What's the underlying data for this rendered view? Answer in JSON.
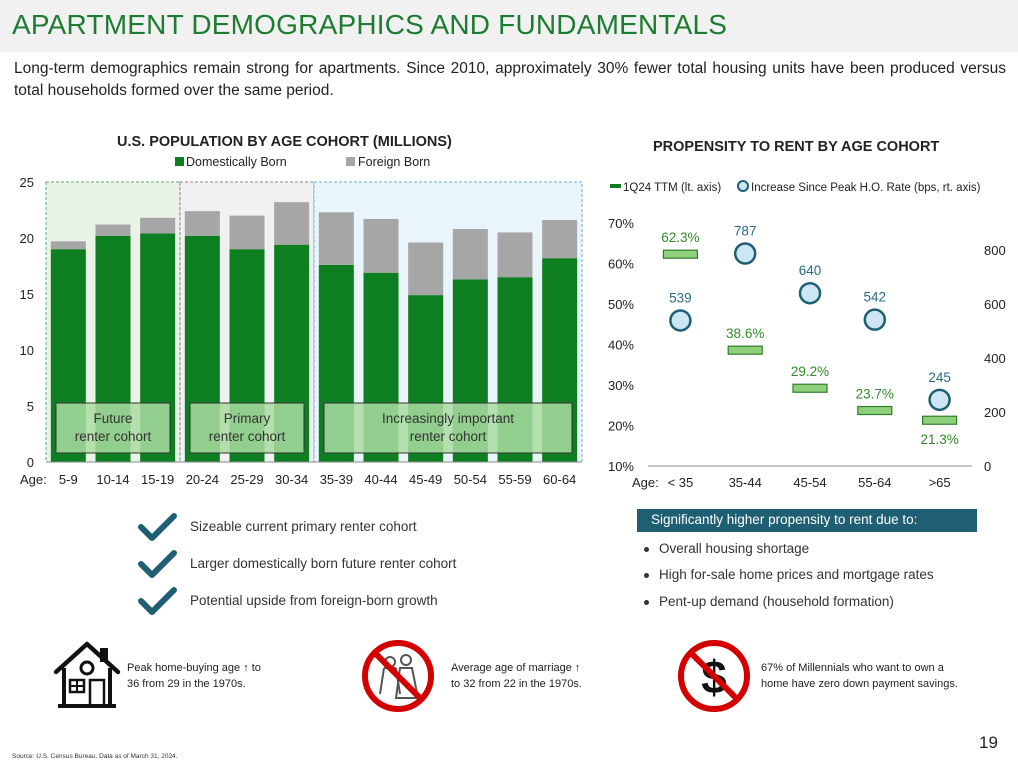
{
  "header": {
    "title": "APARTMENT DEMOGRAPHICS AND FUNDAMENTALS",
    "subtitle": "Long-term demographics remain strong for apartments. Since 2010, approximately 30% fewer total housing units have been produced versus total households formed over the same period."
  },
  "colors": {
    "green": "#0e7f21",
    "gray": "#a6a6a6",
    "light_green": "#8fd07c",
    "teal": "#1f5f73",
    "marker_blue": "#cde6f3",
    "marker_edge": "#1f5f73",
    "title_green": "#1e7b32"
  },
  "chart_data": [
    {
      "type": "bar",
      "title": "U.S. POPULATION BY AGE COHORT (MILLIONS)",
      "x_prefix": "Age:",
      "categories": [
        "5-9",
        "10-14",
        "15-19",
        "20-24",
        "25-29",
        "30-34",
        "35-39",
        "40-44",
        "45-49",
        "50-54",
        "55-59",
        "60-64"
      ],
      "series": [
        {
          "name": "Domestically Born",
          "values": [
            19.0,
            20.2,
            20.4,
            20.2,
            19.0,
            19.4,
            17.6,
            16.9,
            14.9,
            16.3,
            16.5,
            18.2
          ]
        },
        {
          "name": "Foreign Born",
          "values": [
            0.7,
            1.0,
            1.4,
            2.2,
            3.0,
            3.8,
            4.7,
            4.8,
            4.7,
            4.5,
            4.0,
            3.4
          ]
        }
      ],
      "stacked": true,
      "ylim": [
        0,
        25
      ],
      "yticks": [
        0,
        5,
        10,
        15,
        20,
        25
      ],
      "legend": "top",
      "groups": [
        {
          "label": "Future\nrenter cohort",
          "from": 0,
          "to": 2
        },
        {
          "label": "Primary\nrenter cohort",
          "from": 3,
          "to": 5
        },
        {
          "label": "Increasingly important\nrenter cohort",
          "from": 6,
          "to": 11
        }
      ]
    },
    {
      "type": "scatter",
      "title": "PROPENSITY TO RENT BY AGE COHORT",
      "x_prefix": "Age:",
      "categories": [
        "< 35",
        "35-44",
        "45-54",
        "55-64",
        ">65"
      ],
      "series": [
        {
          "name": "1Q24 TTM (lt. axis)",
          "axis": "left",
          "values": [
            62.3,
            38.6,
            29.2,
            23.7,
            21.3
          ],
          "labels": [
            "62.3%",
            "38.6%",
            "29.2%",
            "23.7%",
            "21.3%"
          ]
        },
        {
          "name": "Increase Since Peak H.O. Rate (bps, rt. axis)",
          "axis": "right",
          "values": [
            539,
            787,
            640,
            542,
            245
          ],
          "labels": [
            "539",
            "787",
            "640",
            "542",
            "245"
          ]
        }
      ],
      "ylim_left": [
        10,
        70
      ],
      "yticks_left": [
        "10%",
        "20%",
        "30%",
        "40%",
        "50%",
        "60%",
        "70%"
      ],
      "ylim_right": [
        0,
        900
      ],
      "yticks_right": [
        "0",
        "200",
        "400",
        "600",
        "800"
      ],
      "legend": "top"
    }
  ],
  "checklist": [
    "Sizeable current primary renter cohort",
    "Larger domestically born future renter cohort",
    "Potential upside from foreign-born growth"
  ],
  "reasons": {
    "heading": "Significantly higher propensity to rent due to:",
    "items": [
      "Overall housing shortage",
      "High for-sale home prices and mortgage rates",
      "Pent-up demand (household formation)"
    ]
  },
  "facts": [
    {
      "icon": "house-icon",
      "line1": "Peak home-buying age ↑ to",
      "line2": "36 from 29 in the 1970s."
    },
    {
      "icon": "no-marriage-icon",
      "line1": "Average age of marriage ↑",
      "line2": "to 32 from 22 in the 1970s."
    },
    {
      "icon": "no-dollar-icon",
      "line1": "67% of Millennials who want to own a",
      "line2": "home have zero down payment savings."
    }
  ],
  "footer": {
    "source": "Source: U.S. Census Bureau. Data as of March 31, 2024.",
    "page": "19"
  }
}
